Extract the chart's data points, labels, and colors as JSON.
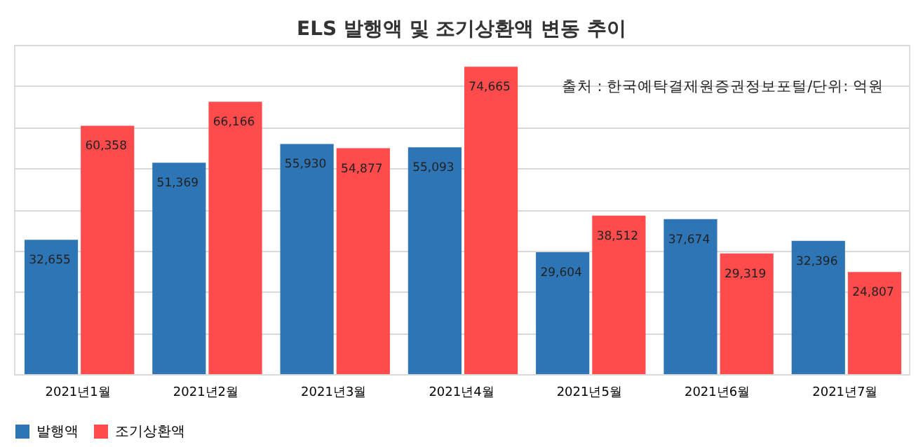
{
  "chart_data": {
    "type": "bar",
    "title": "ELS 발행액 및 조기상환액 변동 추이",
    "categories": [
      "2021년1월",
      "2021년2월",
      "2021년3월",
      "2021년4월",
      "2021년5월",
      "2021년6월",
      "2021년7월"
    ],
    "series": [
      {
        "name": "발행액",
        "color": "#2e75b6",
        "values": [
          32655,
          51369,
          55930,
          55093,
          29604,
          37674,
          32396
        ],
        "value_labels": [
          "32,655",
          "51,369",
          "55,930",
          "55,093",
          "29,604",
          "37,674",
          "32,396"
        ]
      },
      {
        "name": "조기상환액",
        "color": "#ff4b4b",
        "values": [
          60358,
          66166,
          54877,
          74665,
          38512,
          29319,
          24807
        ],
        "value_labels": [
          "60,358",
          "66,166",
          "54,877",
          "74,665",
          "38,512",
          "29,319",
          "24,807"
        ]
      }
    ],
    "tick_labels": "x",
    "grid": "y",
    "legend": "bottom",
    "annotations": [
      "출처 : 한국예탁결제원증권정보포털/단위: 억원"
    ]
  }
}
